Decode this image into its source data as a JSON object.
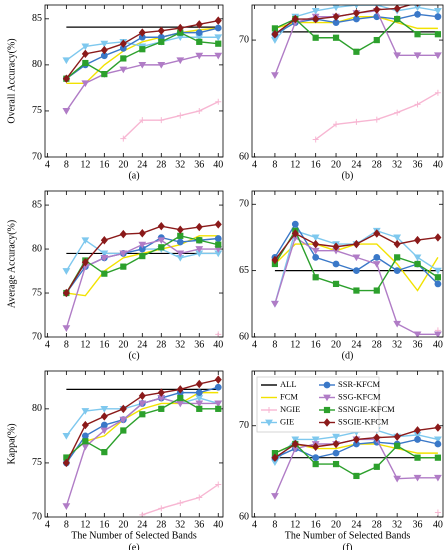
{
  "chart_data": [
    {
      "type": "line",
      "caption": "(a)",
      "ylabel": "Overall Accuracy(%)",
      "x": [
        8,
        12,
        16,
        20,
        24,
        28,
        32,
        36,
        40
      ],
      "xlim": [
        3.5,
        41
      ],
      "xticks": [
        4,
        8,
        12,
        16,
        20,
        24,
        28,
        32,
        36,
        40
      ],
      "ylim": [
        70,
        86.5
      ],
      "yticks": [
        70,
        75,
        80,
        85
      ],
      "series": [
        {
          "name": "ALL",
          "color": "#000000",
          "marker": "none",
          "values": [
            84.1,
            84.1,
            84.1,
            84.1,
            84.1,
            84.1,
            84.1,
            84.1,
            84.1
          ]
        },
        {
          "name": "FCM",
          "color": "#f2e200",
          "marker": "none",
          "values": [
            78,
            78,
            80,
            81.5,
            82.5,
            83,
            83.5,
            83.8,
            84
          ]
        },
        {
          "name": "NGIE",
          "color": "#f7b6d2",
          "marker": "plus",
          "values": [
            null,
            null,
            null,
            72,
            74,
            74,
            74.5,
            75,
            76
          ]
        },
        {
          "name": "GIE",
          "color": "#7ec8ee",
          "marker": "tri",
          "values": [
            80.5,
            82,
            82.3,
            82.5,
            82,
            82.5,
            83,
            83,
            83
          ]
        },
        {
          "name": "SSR-KFCM",
          "color": "#3a78c8",
          "marker": "circle",
          "values": [
            78.5,
            80,
            81,
            81.8,
            83,
            83,
            83.5,
            83.5,
            84
          ]
        },
        {
          "name": "SSG-KFCM",
          "color": "#b07cc6",
          "marker": "tri",
          "values": [
            75,
            78,
            79,
            79.5,
            80,
            80,
            80.5,
            81,
            81
          ]
        },
        {
          "name": "SSNGIE-KFCM",
          "color": "#2ca02c",
          "marker": "square",
          "values": [
            78.5,
            80.2,
            79,
            80.7,
            81.7,
            82.5,
            83.5,
            82.5,
            82.3
          ]
        },
        {
          "name": "SSGIE-KFCM",
          "color": "#8b1a1a",
          "marker": "diamond",
          "values": [
            78.5,
            81.2,
            81.6,
            82.3,
            83.5,
            83.7,
            84,
            84.4,
            84.8
          ]
        }
      ]
    },
    {
      "type": "line",
      "caption": "(b)",
      "x": [
        8,
        12,
        16,
        20,
        24,
        28,
        32,
        36,
        40
      ],
      "xlim": [
        3.5,
        41
      ],
      "xticks": [
        4,
        8,
        12,
        16,
        20,
        24,
        28,
        32,
        36,
        40
      ],
      "ylim": [
        60,
        73
      ],
      "yticks": [
        60,
        70
      ],
      "series": [
        {
          "name": "ALL",
          "color": "#000000",
          "marker": "none",
          "values": [
            70.7,
            70.7,
            70.7,
            70.7,
            70.7,
            70.7,
            70.7,
            70.7,
            70.7
          ]
        },
        {
          "name": "FCM",
          "color": "#f2e200",
          "marker": "none",
          "values": [
            71,
            71.5,
            71.5,
            71.5,
            72,
            72,
            71.5,
            71,
            71
          ]
        },
        {
          "name": "NGIE",
          "color": "#f7b6d2",
          "marker": "plus",
          "values": [
            null,
            null,
            61.5,
            62.8,
            63,
            63.2,
            63.8,
            64.5,
            65.5
          ]
        },
        {
          "name": "GIE",
          "color": "#7ec8ee",
          "marker": "tri",
          "values": [
            70,
            72,
            72.5,
            72.8,
            73,
            73,
            72.5,
            72.8,
            72.5
          ]
        },
        {
          "name": "SSR-KFCM",
          "color": "#3a78c8",
          "marker": "circle",
          "values": [
            70.5,
            71.5,
            71.8,
            71.5,
            71.8,
            72,
            71.8,
            72.2,
            72
          ]
        },
        {
          "name": "SSG-KFCM",
          "color": "#b07cc6",
          "marker": "tri",
          "values": [
            67,
            71.5,
            72,
            72,
            72.3,
            72.5,
            68.7,
            68.7,
            68.7
          ]
        },
        {
          "name": "SSNGIE-KFCM",
          "color": "#2ca02c",
          "marker": "square",
          "values": [
            71,
            71.8,
            70.2,
            70.2,
            69,
            70,
            71.8,
            70.5,
            70.5
          ]
        },
        {
          "name": "SSGIE-KFCM",
          "color": "#8b1a1a",
          "marker": "diamond",
          "values": [
            70.5,
            71.8,
            71.8,
            72,
            72.3,
            72.6,
            72.7,
            73.2,
            73.5
          ]
        }
      ]
    },
    {
      "type": "line",
      "caption": "(c)",
      "ylabel": "Average Accuracy(%)",
      "x": [
        8,
        12,
        16,
        20,
        24,
        28,
        32,
        36,
        40
      ],
      "xlim": [
        3.5,
        41
      ],
      "xticks": [
        4,
        8,
        12,
        16,
        20,
        24,
        28,
        32,
        36,
        40
      ],
      "ylim": [
        70,
        86.6
      ],
      "yticks": [
        70,
        75,
        80,
        85
      ],
      "series": [
        {
          "name": "ALL",
          "color": "#000000",
          "marker": "none",
          "values": [
            79.5,
            79.5,
            79.5,
            79.5,
            79.5,
            79.5,
            79.5,
            79.5,
            79.5
          ]
        },
        {
          "name": "FCM",
          "color": "#f2e200",
          "marker": "none",
          "values": [
            75,
            74.7,
            77.5,
            79,
            79.5,
            80,
            80.5,
            81.5,
            81.5
          ]
        },
        {
          "name": "NGIE",
          "color": "#f7b6d2",
          "marker": "plus",
          "values": [
            null,
            null,
            null,
            null,
            null,
            null,
            null,
            null,
            70.3
          ]
        },
        {
          "name": "GIE",
          "color": "#7ec8ee",
          "marker": "tri",
          "values": [
            77.5,
            81,
            79.5,
            79.5,
            80,
            80,
            79,
            79.5,
            79.5
          ]
        },
        {
          "name": "SSR-KFCM",
          "color": "#3a78c8",
          "marker": "circle",
          "values": [
            75,
            78,
            79,
            79.5,
            80,
            81.3,
            80.8,
            81,
            81.2
          ]
        },
        {
          "name": "SSG-KFCM",
          "color": "#b07cc6",
          "marker": "tri",
          "values": [
            71,
            78,
            79,
            79.5,
            80.5,
            81,
            79.5,
            80,
            80
          ]
        },
        {
          "name": "SSNGIE-KFCM",
          "color": "#2ca02c",
          "marker": "square",
          "values": [
            75,
            78.7,
            77.2,
            78,
            79.2,
            80.2,
            81.5,
            81,
            80.5
          ]
        },
        {
          "name": "SSGIE-KFCM",
          "color": "#8b1a1a",
          "marker": "diamond",
          "values": [
            75,
            78.5,
            81,
            81.7,
            81.8,
            82.6,
            82.2,
            82.5,
            82.8
          ]
        }
      ]
    },
    {
      "type": "line",
      "caption": "(d)",
      "x": [
        8,
        12,
        16,
        20,
        24,
        28,
        32,
        36,
        40
      ],
      "xlim": [
        3.5,
        41
      ],
      "xticks": [
        4,
        8,
        12,
        16,
        20,
        24,
        28,
        32,
        36,
        40
      ],
      "ylim": [
        60,
        71
      ],
      "yticks": [
        60,
        65,
        70
      ],
      "series": [
        {
          "name": "ALL",
          "color": "#000000",
          "marker": "none",
          "values": [
            65,
            65,
            65,
            65,
            65,
            65,
            65,
            65,
            65
          ]
        },
        {
          "name": "FCM",
          "color": "#f2e200",
          "marker": "none",
          "values": [
            65.5,
            67,
            67,
            66.5,
            67,
            67,
            65.5,
            63.5,
            66
          ]
        },
        {
          "name": "NGIE",
          "color": "#f7b6d2",
          "marker": "plus",
          "values": [
            null,
            null,
            null,
            null,
            null,
            null,
            null,
            null,
            60.5
          ]
        },
        {
          "name": "GIE",
          "color": "#7ec8ee",
          "marker": "tri",
          "values": [
            62.5,
            68,
            67.5,
            67,
            67,
            68,
            67.5,
            66,
            65
          ]
        },
        {
          "name": "SSR-KFCM",
          "color": "#3a78c8",
          "marker": "circle",
          "values": [
            66,
            68.5,
            66,
            65.5,
            65,
            66,
            65,
            65.5,
            64
          ]
        },
        {
          "name": "SSG-KFCM",
          "color": "#b07cc6",
          "marker": "tri",
          "values": [
            62.5,
            67.5,
            66.5,
            66.5,
            66,
            65.5,
            61,
            60.2,
            60.2
          ]
        },
        {
          "name": "SSNGIE-KFCM",
          "color": "#2ca02c",
          "marker": "square",
          "values": [
            65.5,
            68,
            64.5,
            64,
            63.5,
            63.5,
            66,
            65.5,
            64.5
          ]
        },
        {
          "name": "SSGIE-KFCM",
          "color": "#8b1a1a",
          "marker": "diamond",
          "values": [
            65.8,
            67.8,
            67,
            66.8,
            67,
            67.8,
            67,
            67.3,
            67.5
          ]
        }
      ]
    },
    {
      "type": "line",
      "caption": "(e)",
      "ylabel": "Kappa(%)",
      "xlabel": "The Number of Selected Bands",
      "x": [
        8,
        12,
        16,
        20,
        24,
        28,
        32,
        36,
        40
      ],
      "xlim": [
        3.5,
        41
      ],
      "xticks": [
        4,
        8,
        12,
        16,
        20,
        24,
        28,
        32,
        36,
        40
      ],
      "ylim": [
        70,
        83.5
      ],
      "yticks": [
        70,
        75,
        80
      ],
      "series": [
        {
          "name": "ALL",
          "color": "#000000",
          "marker": "none",
          "values": [
            81.8,
            81.8,
            81.8,
            81.8,
            81.8,
            81.8,
            81.8,
            81.8,
            81.8
          ]
        },
        {
          "name": "FCM",
          "color": "#f2e200",
          "marker": "none",
          "values": [
            75.5,
            77,
            77.5,
            79,
            80,
            80.5,
            80.5,
            81.5,
            81.5
          ]
        },
        {
          "name": "NGIE",
          "color": "#f7b6d2",
          "marker": "plus",
          "values": [
            null,
            null,
            null,
            null,
            70.2,
            70.8,
            71.3,
            71.8,
            73
          ]
        },
        {
          "name": "GIE",
          "color": "#7ec8ee",
          "marker": "tri",
          "values": [
            77.5,
            79.8,
            80,
            80,
            80.5,
            81,
            80.5,
            81,
            80.5
          ]
        },
        {
          "name": "SSR-KFCM",
          "color": "#3a78c8",
          "marker": "circle",
          "values": [
            75,
            77.5,
            78.5,
            79,
            80.5,
            81,
            81.5,
            81.5,
            82
          ]
        },
        {
          "name": "SSG-KFCM",
          "color": "#b07cc6",
          "marker": "tri",
          "values": [
            71,
            76.5,
            78,
            79,
            80.5,
            81,
            80.5,
            80.5,
            80.5
          ]
        },
        {
          "name": "SSNGIE-KFCM",
          "color": "#2ca02c",
          "marker": "square",
          "values": [
            75.5,
            77,
            76,
            78,
            79.5,
            80,
            81,
            80,
            80
          ]
        },
        {
          "name": "SSGIE-KFCM",
          "color": "#8b1a1a",
          "marker": "diamond",
          "values": [
            75,
            78.5,
            79.3,
            80,
            81.2,
            81.5,
            81.8,
            82.3,
            82.7
          ]
        }
      ]
    },
    {
      "type": "line",
      "caption": "(f)",
      "xlabel": "The Number of Selected Bands",
      "legend": "upper left",
      "x": [
        8,
        12,
        16,
        20,
        24,
        28,
        32,
        36,
        40
      ],
      "xlim": [
        3.5,
        41
      ],
      "xticks": [
        4,
        8,
        12,
        16,
        20,
        24,
        28,
        32,
        36,
        40
      ],
      "ylim": [
        60,
        76
      ],
      "yticks": [
        60,
        70
      ],
      "series": [
        {
          "name": "ALL",
          "color": "#000000",
          "marker": "none",
          "values": [
            66.5,
            66.5,
            66.5,
            66.5,
            66.5,
            66.5,
            66.5,
            66.5,
            66.5
          ]
        },
        {
          "name": "FCM",
          "color": "#f2e200",
          "marker": "none",
          "values": [
            67,
            68,
            67.5,
            67.5,
            68,
            68,
            67.5,
            67,
            67
          ]
        },
        {
          "name": "NGIE",
          "color": "#f7b6d2",
          "marker": "plus",
          "values": [
            null,
            null,
            null,
            null,
            null,
            null,
            null,
            null,
            60.5
          ]
        },
        {
          "name": "GIE",
          "color": "#7ec8ee",
          "marker": "tri",
          "values": [
            66,
            68.5,
            68.5,
            68.8,
            69.3,
            69.5,
            68.8,
            69,
            68.5
          ]
        },
        {
          "name": "SSR-KFCM",
          "color": "#3a78c8",
          "marker": "circle",
          "values": [
            66.5,
            67.5,
            66.5,
            67,
            68,
            68.2,
            68,
            68.5,
            68
          ]
        },
        {
          "name": "SSG-KFCM",
          "color": "#b07cc6",
          "marker": "tri",
          "values": [
            62.3,
            67.5,
            68,
            68,
            68.5,
            68.5,
            64.2,
            64.3,
            64.3
          ]
        },
        {
          "name": "SSNGIE-KFCM",
          "color": "#2ca02c",
          "marker": "square",
          "values": [
            67,
            68,
            65.8,
            65.8,
            64.5,
            65.5,
            67.8,
            66.5,
            66.5
          ]
        },
        {
          "name": "SSGIE-KFCM",
          "color": "#8b1a1a",
          "marker": "diamond",
          "values": [
            66.5,
            68,
            67.7,
            68,
            68.5,
            68.7,
            68.8,
            69.5,
            69.8
          ]
        }
      ]
    }
  ]
}
